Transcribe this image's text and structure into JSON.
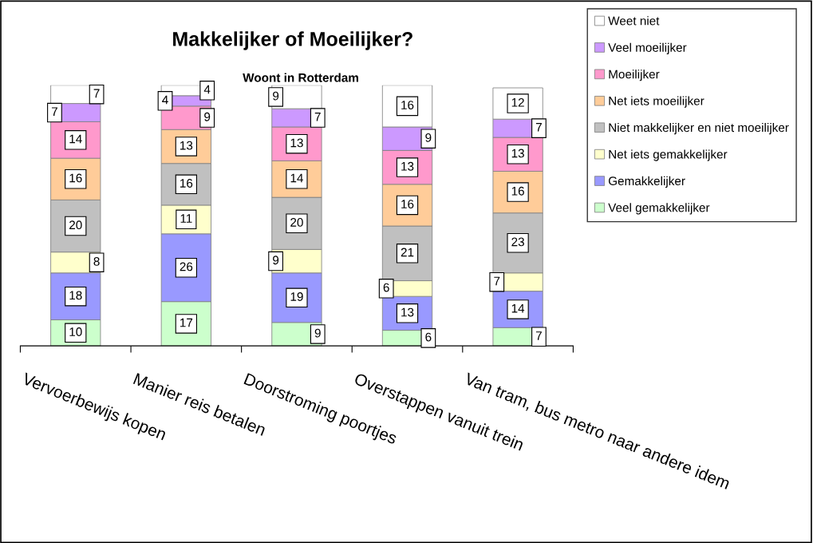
{
  "chart_data": {
    "type": "bar",
    "title": "Makkelijker of Moeilijker?",
    "subtitle": "Woont in Rotterdam",
    "categories": [
      "Vervoerbewijs kopen",
      "Manier reis betalen",
      "Doorstroming poortjes",
      "Overstappen vanuit trein",
      "Van tram, bus metro naar andere idem"
    ],
    "stacked": true,
    "data_labels": true,
    "legend": "right",
    "grid": false,
    "ylim": [
      0,
      100
    ],
    "tick_labels": "x",
    "series": [
      {
        "name": "Veel gemakkelijker",
        "color": "#ccffcc",
        "values": [
          10,
          17,
          9,
          6,
          7
        ]
      },
      {
        "name": "Gemakkelijker",
        "color": "#9999ff",
        "values": [
          18,
          26,
          19,
          13,
          14
        ]
      },
      {
        "name": "Net iets gemakkelijker",
        "color": "#ffffcc",
        "values": [
          8,
          11,
          9,
          6,
          7
        ]
      },
      {
        "name": "Niet makkelijker en niet moeilijker",
        "color": "#c0c0c0",
        "values": [
          20,
          16,
          20,
          21,
          23
        ]
      },
      {
        "name": "Net iets moeilijker",
        "color": "#ffcc99",
        "values": [
          16,
          13,
          14,
          16,
          16
        ]
      },
      {
        "name": "Moeilijker",
        "color": "#ff99cc",
        "values": [
          14,
          9,
          13,
          13,
          13
        ]
      },
      {
        "name": "Veel moeilijker",
        "color": "#cc99ff",
        "values": [
          7,
          4,
          7,
          9,
          7
        ]
      },
      {
        "name": "Weet niet",
        "color": "#ffffff",
        "values": [
          7,
          4,
          9,
          16,
          12
        ]
      }
    ]
  }
}
